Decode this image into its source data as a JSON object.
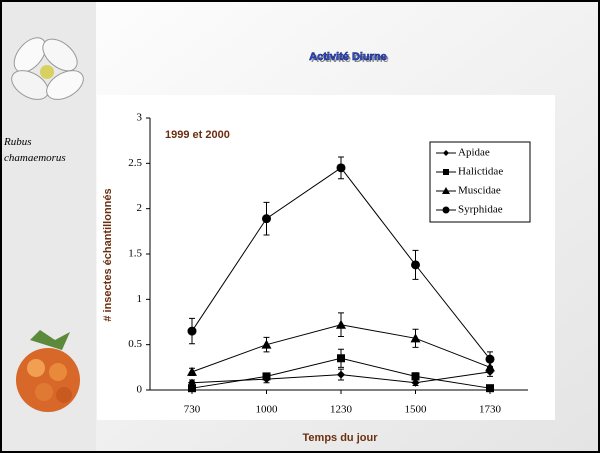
{
  "slide": {
    "title": "Activité Diurne",
    "caption": "Rubus chamaemorus"
  },
  "chart_data": {
    "type": "line",
    "annotation": "1999 et 2000",
    "x_label": "Temps du jour",
    "y_label": "# insectes échantillonnés",
    "categories": [
      "730",
      "1000",
      "1230",
      "1500",
      "1730"
    ],
    "series": [
      {
        "name": "Apidae",
        "color": "#000000",
        "marker": "diamond",
        "values": [
          0.08,
          0.12,
          0.17,
          0.08,
          0.2
        ],
        "errors": [
          0.03,
          0.04,
          0.06,
          0.03,
          0.05
        ]
      },
      {
        "name": "Halictidae",
        "color": "#000000",
        "marker": "square",
        "values": [
          0.02,
          0.15,
          0.35,
          0.15,
          0.02
        ],
        "errors": [
          0.02,
          0.03,
          0.1,
          0.04,
          0.02
        ]
      },
      {
        "name": "Muscidae",
        "color": "#000000",
        "marker": "triangle",
        "values": [
          0.2,
          0.5,
          0.72,
          0.57,
          0.25
        ],
        "errors": [
          0.04,
          0.08,
          0.13,
          0.1,
          0.06
        ]
      },
      {
        "name": "Syrphidae",
        "color": "#000000",
        "marker": "circle",
        "values": [
          0.65,
          1.89,
          2.45,
          1.38,
          0.34
        ],
        "errors": [
          0.14,
          0.18,
          0.12,
          0.16,
          0.08
        ]
      }
    ],
    "ylim": [
      0,
      3
    ],
    "yticks": [
      0,
      0.5,
      1,
      1.5,
      2,
      2.5,
      3
    ],
    "grid": false,
    "legend": "top-right"
  }
}
